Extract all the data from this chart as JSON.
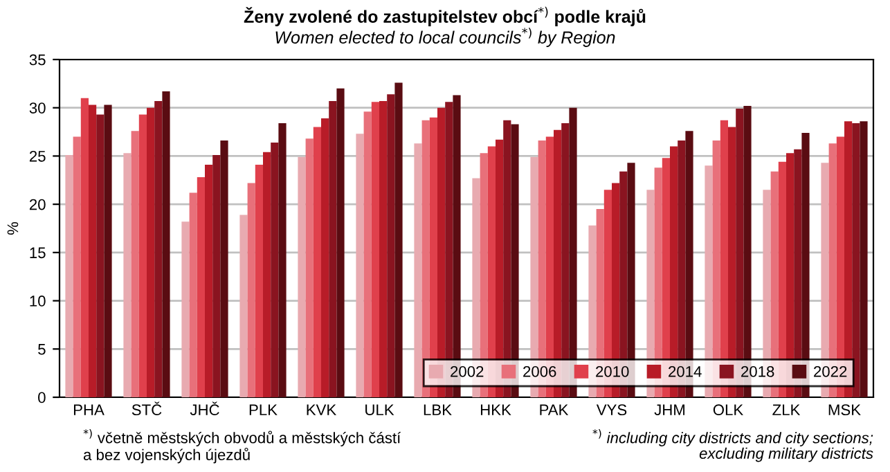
{
  "chart_data": {
    "type": "bar",
    "title": "Ženy zvolené do zastupitelstev obcí$^{*)}$ podle krajů",
    "subtitle": "Women elected to local councils$^{*)}$ by Region",
    "ylabel": "%",
    "categories": [
      "PHA",
      "STČ",
      "JHČ",
      "PLK",
      "KVK",
      "ULK",
      "LBK",
      "HKK",
      "PAK",
      "VYS",
      "JHM",
      "OLK",
      "ZLK",
      "MSK"
    ],
    "series": [
      {
        "name": "2002",
        "color": "#e8aab0",
        "values": [
          25.1,
          25.3,
          18.2,
          18.9,
          24.9,
          27.3,
          26.3,
          22.7,
          24.9,
          17.8,
          21.5,
          24.0,
          21.5,
          24.3
        ]
      },
      {
        "name": "2006",
        "color": "#e8707a",
        "values": [
          27.0,
          27.6,
          21.2,
          22.2,
          26.8,
          29.6,
          28.7,
          25.3,
          26.6,
          19.5,
          23.8,
          26.6,
          23.4,
          26.3
        ]
      },
      {
        "name": "2010",
        "color": "#e0404c",
        "values": [
          31.0,
          29.3,
          22.8,
          24.1,
          28.0,
          30.6,
          29.0,
          26.0,
          27.0,
          21.5,
          24.8,
          28.7,
          24.4,
          27.0
        ]
      },
      {
        "name": "2014",
        "color": "#b81c28",
        "values": [
          30.3,
          30.0,
          24.1,
          25.4,
          28.9,
          30.7,
          30.0,
          26.7,
          27.7,
          22.2,
          26.0,
          28.0,
          25.3,
          28.6
        ]
      },
      {
        "name": "2018",
        "color": "#8a1420",
        "values": [
          29.3,
          30.7,
          25.1,
          26.4,
          30.7,
          31.4,
          30.6,
          28.7,
          28.4,
          23.4,
          26.6,
          29.9,
          25.7,
          28.4
        ]
      },
      {
        "name": "2022",
        "color": "#5a0c12",
        "values": [
          30.3,
          31.7,
          26.6,
          28.4,
          32.0,
          32.6,
          31.3,
          28.3,
          30.0,
          24.3,
          27.6,
          30.2,
          27.4,
          28.6
        ]
      }
    ],
    "ylim": [
      0,
      35
    ],
    "yticks": [
      0,
      5,
      10,
      15,
      20,
      25,
      30,
      35
    ],
    "grid": "y",
    "legend": "bottom right",
    "annotations": [
      "$^{*)}$ včetně městských obvodů a městských částí\na bez vojenských újezdů",
      "$^{*)}$ including city districts and city sections;\nexcluding military districts"
    ]
  }
}
